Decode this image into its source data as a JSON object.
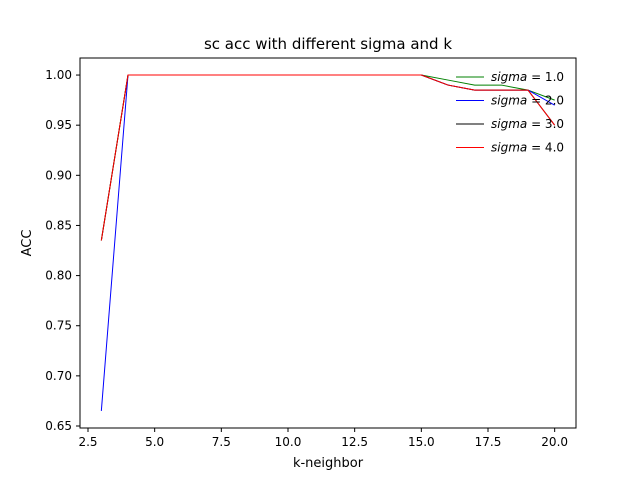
{
  "chart_data": {
    "type": "line",
    "title": "sc acc with different sigma and k",
    "xlabel": "k-neighbor",
    "ylabel": "ACC",
    "xlim": [
      2.2,
      20.8
    ],
    "ylim": [
      0.648,
      1.017
    ],
    "xticks": [
      2.5,
      5.0,
      7.5,
      10.0,
      12.5,
      15.0,
      17.5,
      20.0
    ],
    "xtick_labels": [
      "2.5",
      "5.0",
      "7.5",
      "10.0",
      "12.5",
      "15.0",
      "17.5",
      "20.0"
    ],
    "yticks": [
      0.65,
      0.7,
      0.75,
      0.8,
      0.85,
      0.9,
      0.95,
      1.0
    ],
    "ytick_labels": [
      "0.65",
      "0.70",
      "0.75",
      "0.80",
      "0.85",
      "0.90",
      "0.95",
      "1.00"
    ],
    "grid": false,
    "legend_position": "top-right",
    "x": [
      3,
      4,
      5,
      6,
      7,
      8,
      9,
      10,
      11,
      12,
      13,
      14,
      15,
      16,
      17,
      18,
      19,
      20
    ],
    "series": [
      {
        "name": "sigma = 1.0",
        "color": "#008000",
        "values": [
          0.835,
          1.0,
          1.0,
          1.0,
          1.0,
          1.0,
          1.0,
          1.0,
          1.0,
          1.0,
          1.0,
          1.0,
          1.0,
          0.995,
          0.99,
          0.99,
          0.985,
          0.975
        ]
      },
      {
        "name": "sigma = 2.0",
        "color": "#0000ff",
        "values": [
          0.665,
          1.0,
          1.0,
          1.0,
          1.0,
          1.0,
          1.0,
          1.0,
          1.0,
          1.0,
          1.0,
          1.0,
          1.0,
          0.99,
          0.985,
          0.985,
          0.985,
          0.97
        ]
      },
      {
        "name": "sigma = 3.0",
        "color": "#000000",
        "values": [
          0.835,
          1.0,
          1.0,
          1.0,
          1.0,
          1.0,
          1.0,
          1.0,
          1.0,
          1.0,
          1.0,
          1.0,
          1.0,
          0.99,
          0.985,
          0.985,
          0.985,
          0.95
        ]
      },
      {
        "name": "sigma = 4.0",
        "color": "#ff0000",
        "values": [
          0.835,
          1.0,
          1.0,
          1.0,
          1.0,
          1.0,
          1.0,
          1.0,
          1.0,
          1.0,
          1.0,
          1.0,
          1.0,
          0.99,
          0.985,
          0.985,
          0.985,
          0.95
        ]
      }
    ]
  }
}
